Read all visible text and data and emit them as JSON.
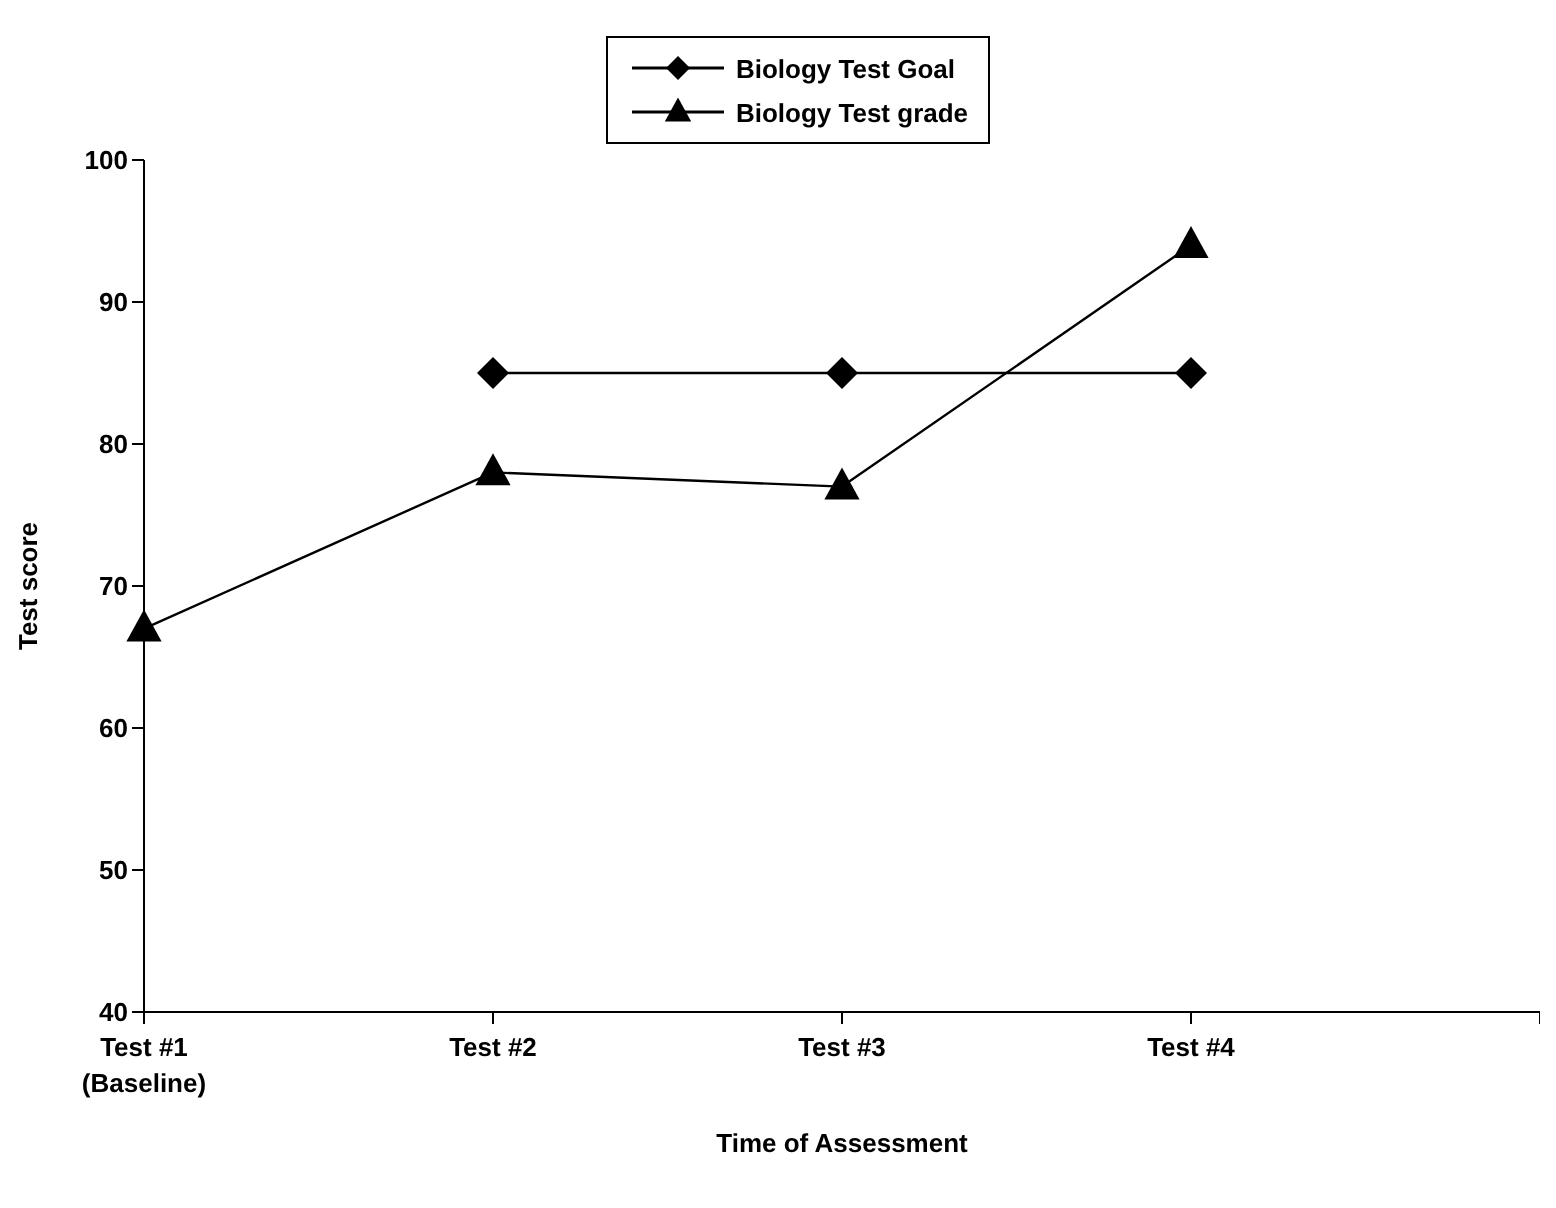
{
  "chart_data": {
    "type": "line",
    "xlabel": "Time of Assessment",
    "ylabel": "Test score",
    "categories": [
      "Test #1\n(Baseline)",
      "Test #2",
      "Test #3",
      "Test #4",
      null
    ],
    "series": [
      {
        "name": "Biology Test Goal",
        "color": "#000000",
        "marker": "diamond",
        "values": [
          null,
          85,
          85,
          85,
          null
        ]
      },
      {
        "name": "Biology Test grade",
        "color": "#000000",
        "marker": "triangle",
        "values": [
          67,
          78,
          77,
          94,
          null
        ]
      }
    ],
    "ylim": [
      40,
      100
    ],
    "yticks": [
      40,
      50,
      60,
      70,
      80,
      90,
      100
    ],
    "grid": false,
    "legend": "top",
    "line_style": "solid"
  }
}
